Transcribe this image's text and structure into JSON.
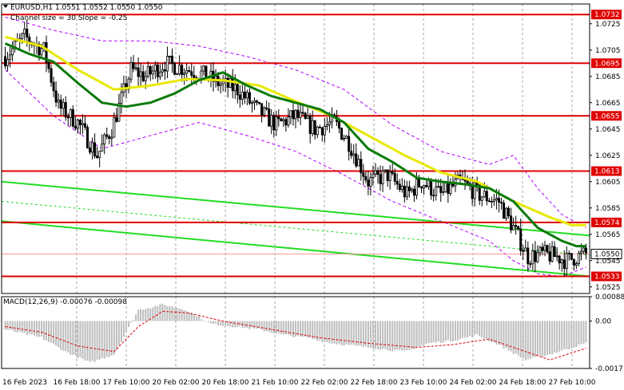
{
  "header": {
    "symbol_line": "EURUSD,H1  1.0551 1.0552 1.0550 1.0550",
    "channel_line": "Channel size = 30 Slope = -0.25"
  },
  "macd": {
    "label": "MACD(12,26,9) -0.00076 -0.00098"
  },
  "colors": {
    "candles": "#000000",
    "level_lines": "#e00000",
    "channel": "#22dd22",
    "ma_fast": "#0a7a0a",
    "ma_slow": "#e8e800",
    "bands": "#b400ff",
    "macd_hist": "#bdbdbd",
    "macd_signal": "#e00000"
  },
  "chart_data": {
    "type": "candlestick",
    "symbol": "EURUSD",
    "timeframe": "H1",
    "ylim": [
      1.052,
      1.074
    ],
    "y_ticks": [
      "1.0725",
      "1.0705",
      "1.0685",
      "1.0665",
      "1.0645",
      "1.0625",
      "1.0605",
      "1.0585",
      "1.0565",
      "1.0545",
      "1.0525"
    ],
    "x_ticks": [
      "16 Feb 2023",
      "16 Feb 18:00",
      "17 Feb 10:00",
      "20 Feb 02:00",
      "20 Feb 18:00",
      "21 Feb 10:00",
      "22 Feb 02:00",
      "22 Feb 18:00",
      "23 Feb 10:00",
      "24 Feb 02:00",
      "24 Feb 18:00",
      "27 Feb 10:00"
    ],
    "levels": [
      {
        "value": 1.0732,
        "label": "1.0732"
      },
      {
        "value": 1.0695,
        "label": "1.0695"
      },
      {
        "value": 1.0655,
        "label": "1.0655"
      },
      {
        "value": 1.0613,
        "label": "1.0613"
      },
      {
        "value": 1.0574,
        "label": "1.0574"
      },
      {
        "value": 1.0533,
        "label": "1.0533"
      }
    ],
    "current_price": "1.0550",
    "close_anchors": [
      [
        0,
        1.07
      ],
      [
        8,
        1.0715
      ],
      [
        16,
        1.0705
      ],
      [
        22,
        1.0662
      ],
      [
        30,
        1.065
      ],
      [
        38,
        1.0625
      ],
      [
        44,
        1.0645
      ],
      [
        52,
        1.069
      ],
      [
        58,
        1.0685
      ],
      [
        66,
        1.0695
      ],
      [
        72,
        1.0692
      ],
      [
        80,
        1.0688
      ],
      [
        88,
        1.068
      ],
      [
        96,
        1.0675
      ],
      [
        104,
        1.066
      ],
      [
        112,
        1.0648
      ],
      [
        120,
        1.0655
      ],
      [
        128,
        1.0645
      ],
      [
        136,
        1.065
      ],
      [
        142,
        1.0635
      ],
      [
        150,
        1.0605
      ],
      [
        158,
        1.061
      ],
      [
        166,
        1.0595
      ],
      [
        172,
        1.0605
      ],
      [
        180,
        1.0595
      ],
      [
        188,
        1.0605
      ],
      [
        196,
        1.0595
      ],
      [
        204,
        1.059
      ],
      [
        210,
        1.057
      ],
      [
        216,
        1.0548
      ],
      [
        222,
        1.055
      ],
      [
        228,
        1.0548
      ],
      [
        232,
        1.0545
      ],
      [
        236,
        1.0548
      ],
      [
        240,
        1.055
      ]
    ],
    "ma_slow_anchors": [
      [
        0,
        1.0715
      ],
      [
        15,
        1.0708
      ],
      [
        30,
        1.069
      ],
      [
        45,
        1.0675
      ],
      [
        60,
        1.0678
      ],
      [
        75,
        1.0683
      ],
      [
        90,
        1.0682
      ],
      [
        105,
        1.0678
      ],
      [
        120,
        1.0666
      ],
      [
        135,
        1.0655
      ],
      [
        150,
        1.064
      ],
      [
        165,
        1.0625
      ],
      [
        180,
        1.0612
      ],
      [
        195,
        1.0605
      ],
      [
        210,
        1.059
      ],
      [
        225,
        1.0578
      ],
      [
        234,
        1.0572
      ]
    ],
    "ma_fast_anchors": [
      [
        0,
        1.071
      ],
      [
        10,
        1.0702
      ],
      [
        20,
        1.0696
      ],
      [
        30,
        1.068
      ],
      [
        40,
        1.0665
      ],
      [
        50,
        1.0662
      ],
      [
        60,
        1.0665
      ],
      [
        70,
        1.0672
      ],
      [
        80,
        1.0682
      ],
      [
        90,
        1.0688
      ],
      [
        100,
        1.0678
      ],
      [
        110,
        1.067
      ],
      [
        120,
        1.0665
      ],
      [
        130,
        1.066
      ],
      [
        140,
        1.065
      ],
      [
        150,
        1.063
      ],
      [
        160,
        1.062
      ],
      [
        170,
        1.0608
      ],
      [
        180,
        1.0605
      ],
      [
        190,
        1.0603
      ],
      [
        200,
        1.06
      ],
      [
        210,
        1.059
      ],
      [
        220,
        1.057
      ],
      [
        230,
        1.056
      ],
      [
        236,
        1.0556
      ]
    ],
    "bands_upper_anchors": [
      [
        0,
        1.073
      ],
      [
        20,
        1.072
      ],
      [
        40,
        1.0712
      ],
      [
        60,
        1.0712
      ],
      [
        80,
        1.0708
      ],
      [
        100,
        1.07
      ],
      [
        120,
        1.069
      ],
      [
        140,
        1.0675
      ],
      [
        160,
        1.0648
      ],
      [
        180,
        1.0628
      ],
      [
        200,
        1.0618
      ],
      [
        210,
        1.0625
      ],
      [
        220,
        1.06
      ],
      [
        230,
        1.058
      ],
      [
        240,
        1.057
      ]
    ],
    "bands_lower_anchors": [
      [
        0,
        1.069
      ],
      [
        20,
        1.0655
      ],
      [
        40,
        1.063
      ],
      [
        60,
        1.064
      ],
      [
        80,
        1.065
      ],
      [
        100,
        1.064
      ],
      [
        120,
        1.0628
      ],
      [
        140,
        1.061
      ],
      [
        160,
        1.059
      ],
      [
        180,
        1.0575
      ],
      [
        200,
        1.056
      ],
      [
        210,
        1.0545
      ],
      [
        220,
        1.0535
      ],
      [
        230,
        1.0533
      ],
      [
        240,
        1.054
      ]
    ],
    "channel_lines": [
      {
        "start": 1.0605,
        "end": 1.0564
      },
      {
        "start": 1.0575,
        "end": 1.0533
      },
      {
        "start": 1.059,
        "end": 1.0549
      }
    ],
    "macd_ylim": [
      -0.00171,
      0.00088
    ],
    "macd_ticks": [
      "0.00088",
      "0.00",
      "-0.00171"
    ],
    "macd_hist_anchors": [
      [
        0,
        -0.0003
      ],
      [
        15,
        -0.0006
      ],
      [
        25,
        -0.0011
      ],
      [
        35,
        -0.0015
      ],
      [
        45,
        -0.0012
      ],
      [
        55,
        0.0004
      ],
      [
        65,
        0.0006
      ],
      [
        75,
        0.0004
      ],
      [
        85,
        -0.0001
      ],
      [
        95,
        -0.0002
      ],
      [
        105,
        -0.0003
      ],
      [
        115,
        -0.0005
      ],
      [
        125,
        -0.0006
      ],
      [
        135,
        -0.0008
      ],
      [
        145,
        -0.0009
      ],
      [
        155,
        -0.001
      ],
      [
        165,
        -0.0011
      ],
      [
        175,
        -0.0008
      ],
      [
        185,
        -0.0007
      ],
      [
        195,
        -0.0005
      ],
      [
        205,
        -0.0009
      ],
      [
        215,
        -0.0014
      ],
      [
        225,
        -0.0012
      ],
      [
        240,
        -0.0008
      ]
    ],
    "macd_signal_anchors": [
      [
        0,
        -0.0002
      ],
      [
        15,
        -0.0004
      ],
      [
        30,
        -0.0009
      ],
      [
        45,
        -0.0011
      ],
      [
        55,
        -0.0002
      ],
      [
        65,
        0.00035
      ],
      [
        75,
        0.0003
      ],
      [
        90,
        0.0
      ],
      [
        110,
        -0.0003
      ],
      [
        130,
        -0.0006
      ],
      [
        150,
        -0.0008
      ],
      [
        170,
        -0.00095
      ],
      [
        185,
        -0.00085
      ],
      [
        200,
        -0.00065
      ],
      [
        215,
        -0.0011
      ],
      [
        225,
        -0.0014
      ],
      [
        240,
        -0.00098
      ]
    ]
  }
}
